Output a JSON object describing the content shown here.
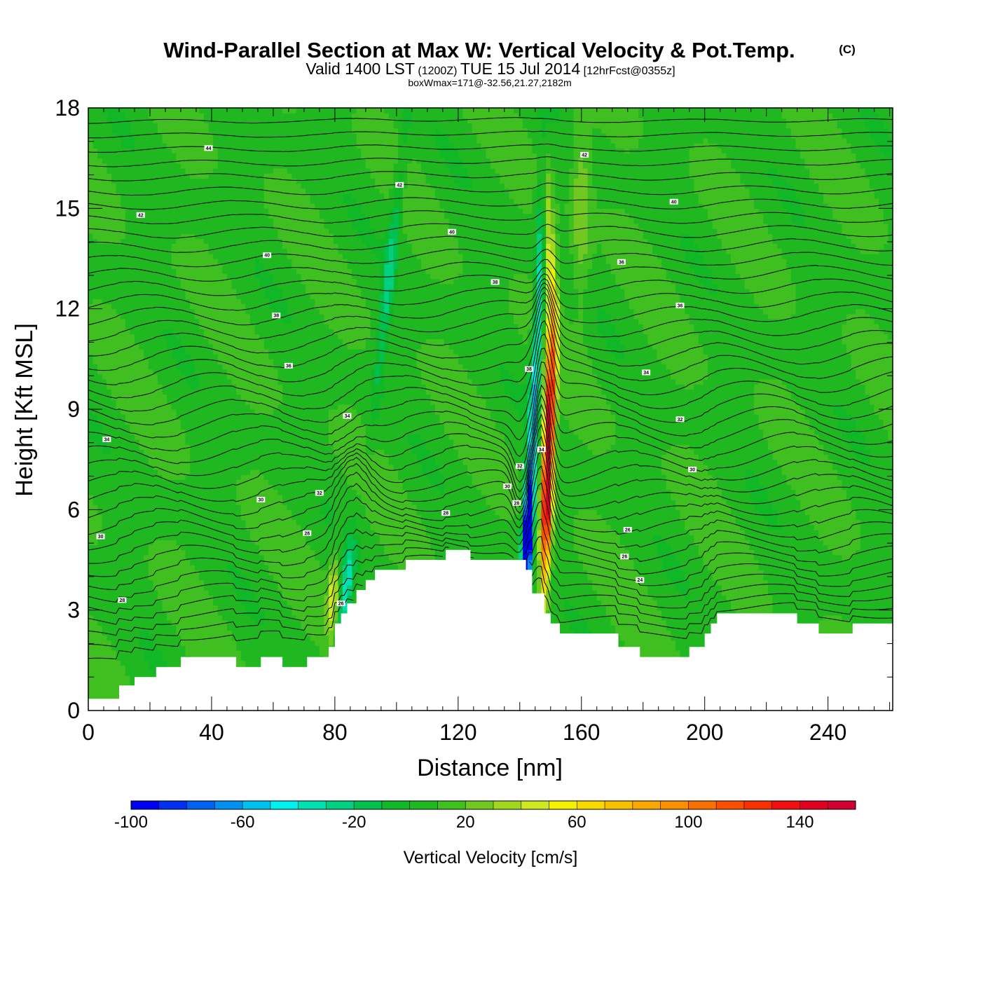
{
  "header": {
    "title": "Wind-Parallel Section at Max W: Vertical Velocity & Pot.Temp.",
    "copyright": "(C)",
    "valid_prefix": "Valid 1400 LST",
    "valid_utc": "(1200Z)",
    "valid_date": "TUE 15 Jul 2014",
    "forecast": "[12hrFcst@0355z]",
    "boxwmax": "boxWmax=171@-32.56,21.27,2182m"
  },
  "chart_data": {
    "type": "heatmap",
    "xlabel": "Distance [nm]",
    "ylabel": "Height [Kft MSL]",
    "xlim": [
      0,
      261
    ],
    "ylim": [
      0,
      18
    ],
    "x_ticks": [
      0,
      40,
      80,
      120,
      160,
      200,
      240
    ],
    "y_ticks": [
      0,
      3,
      6,
      9,
      12,
      15,
      18
    ],
    "colorbar": {
      "label": "Vertical Velocity [cm/s]",
      "range": [
        -100,
        160
      ],
      "step": 10,
      "tick_values": [
        -100,
        -60,
        -20,
        20,
        60,
        100,
        140
      ],
      "colors": [
        "#0000f0",
        "#0030f0",
        "#0060f0",
        "#0090f0",
        "#00c0f0",
        "#00f0f0",
        "#00e0b0",
        "#00d080",
        "#00c050",
        "#10b828",
        "#20b820",
        "#40c020",
        "#70c820",
        "#a0d820",
        "#d0e820",
        "#f0f000",
        "#f8d800",
        "#f8c000",
        "#f8a800",
        "#f89000",
        "#f87000",
        "#f85000",
        "#f83000",
        "#f01010",
        "#e00020",
        "#d00030"
      ]
    },
    "terrain_kft": [
      [
        0,
        0.35
      ],
      [
        10,
        0.35
      ],
      [
        10,
        0.75
      ],
      [
        15,
        0.75
      ],
      [
        15,
        1.0
      ],
      [
        22,
        1.0
      ],
      [
        22,
        1.3
      ],
      [
        30,
        1.3
      ],
      [
        30,
        1.6
      ],
      [
        48,
        1.6
      ],
      [
        48,
        1.3
      ],
      [
        56,
        1.3
      ],
      [
        56,
        1.6
      ],
      [
        63,
        1.6
      ],
      [
        63,
        1.3
      ],
      [
        71,
        1.3
      ],
      [
        71,
        1.6
      ],
      [
        78,
        1.6
      ],
      [
        78,
        1.9
      ],
      [
        80,
        1.9
      ],
      [
        80,
        2.6
      ],
      [
        82,
        2.6
      ],
      [
        82,
        2.9
      ],
      [
        84,
        2.9
      ],
      [
        84,
        3.2
      ],
      [
        87,
        3.2
      ],
      [
        87,
        3.6
      ],
      [
        90,
        3.6
      ],
      [
        90,
        3.9
      ],
      [
        93,
        3.9
      ],
      [
        93,
        4.2
      ],
      [
        103,
        4.2
      ],
      [
        103,
        4.5
      ],
      [
        116,
        4.5
      ],
      [
        116,
        4.8
      ],
      [
        124,
        4.8
      ],
      [
        124,
        4.5
      ],
      [
        142,
        4.5
      ],
      [
        142,
        4.2
      ],
      [
        144,
        4.2
      ],
      [
        144,
        3.5
      ],
      [
        148,
        3.5
      ],
      [
        148,
        2.9
      ],
      [
        150,
        2.9
      ],
      [
        150,
        2.6
      ],
      [
        153,
        2.6
      ],
      [
        153,
        2.3
      ],
      [
        172,
        2.3
      ],
      [
        172,
        1.9
      ],
      [
        179,
        1.9
      ],
      [
        179,
        1.6
      ],
      [
        195,
        1.6
      ],
      [
        195,
        1.9
      ],
      [
        200,
        1.9
      ],
      [
        200,
        2.3
      ],
      [
        202,
        2.3
      ],
      [
        202,
        2.6
      ],
      [
        204,
        2.6
      ],
      [
        204,
        2.9
      ],
      [
        230,
        2.9
      ],
      [
        230,
        2.6
      ],
      [
        237,
        2.6
      ],
      [
        237,
        2.3
      ],
      [
        248,
        2.3
      ],
      [
        248,
        2.6
      ],
      [
        261,
        2.6
      ]
    ],
    "updraft_core": {
      "center_x": 148,
      "max_w": 171,
      "max_height_kft": 7.2
    },
    "downdraft_core": {
      "center_x": 143,
      "min_w": -100,
      "min_height_kft": 5.0
    },
    "theta_contour_labels": [
      {
        "text": "44",
        "x": 39,
        "y": 16.8
      },
      {
        "text": "42",
        "x": 17,
        "y": 14.8
      },
      {
        "text": "42",
        "x": 101,
        "y": 15.7
      },
      {
        "text": "42",
        "x": 161,
        "y": 16.6
      },
      {
        "text": "40",
        "x": 58,
        "y": 13.6
      },
      {
        "text": "40",
        "x": 118,
        "y": 14.3
      },
      {
        "text": "40",
        "x": 190,
        "y": 15.2
      },
      {
        "text": "38",
        "x": 61,
        "y": 11.8
      },
      {
        "text": "38",
        "x": 132,
        "y": 12.8
      },
      {
        "text": "38",
        "x": 143,
        "y": 10.2
      },
      {
        "text": "36",
        "x": 173,
        "y": 13.4
      },
      {
        "text": "36",
        "x": 192,
        "y": 12.1
      },
      {
        "text": "36",
        "x": 65,
        "y": 10.3
      },
      {
        "text": "34",
        "x": 84,
        "y": 8.8
      },
      {
        "text": "34",
        "x": 6,
        "y": 8.1
      },
      {
        "text": "34",
        "x": 181,
        "y": 10.1
      },
      {
        "text": "34",
        "x": 147,
        "y": 7.8
      },
      {
        "text": "32",
        "x": 192,
        "y": 8.7
      },
      {
        "text": "32",
        "x": 140,
        "y": 7.3
      },
      {
        "text": "32",
        "x": 75,
        "y": 6.5
      },
      {
        "text": "30",
        "x": 56,
        "y": 6.3
      },
      {
        "text": "30",
        "x": 196,
        "y": 7.2
      },
      {
        "text": "30",
        "x": 136,
        "y": 6.7
      },
      {
        "text": "30",
        "x": 4,
        "y": 5.2
      },
      {
        "text": "28",
        "x": 71,
        "y": 5.3
      },
      {
        "text": "28",
        "x": 116,
        "y": 5.9
      },
      {
        "text": "28",
        "x": 139,
        "y": 6.2
      },
      {
        "text": "26",
        "x": 175,
        "y": 5.4
      },
      {
        "text": "26",
        "x": 174,
        "y": 4.6
      },
      {
        "text": "24",
        "x": 179,
        "y": 3.9
      },
      {
        "text": "26",
        "x": 82,
        "y": 3.2
      },
      {
        "text": "28",
        "x": 11,
        "y": 3.3
      }
    ]
  }
}
